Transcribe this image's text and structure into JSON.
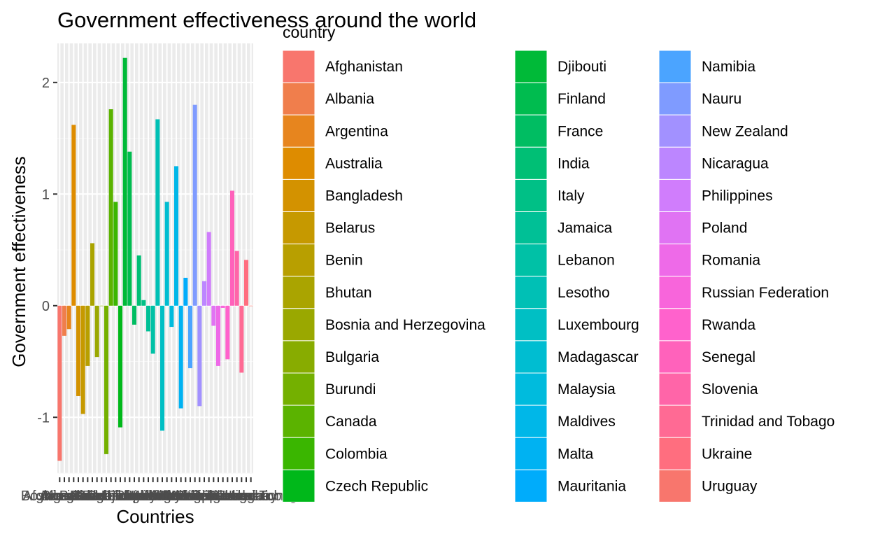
{
  "chart_data": {
    "type": "bar",
    "title": "Government effectiveness around the world",
    "xlabel": "Countries",
    "ylabel": "Government effectiveness",
    "ylim": [
      -1.5,
      2.35
    ],
    "yticks": [
      -1,
      0,
      1,
      2
    ],
    "grid": true,
    "legend_title": "country",
    "legend_position": "right",
    "categories": [
      "Afghanistan",
      "Albania",
      "Argentina",
      "Australia",
      "Bangladesh",
      "Belarus",
      "Benin",
      "Bhutan",
      "Bosnia and Herzegovina",
      "Bulgaria",
      "Burundi",
      "Canada",
      "Colombia",
      "Czech Republic",
      "Djibouti",
      "Finland",
      "France",
      "India",
      "Italy",
      "Jamaica",
      "Lebanon",
      "Lesotho",
      "Luxembourg",
      "Madagascar",
      "Malaysia",
      "Maldives",
      "Malta",
      "Mauritania",
      "Namibia",
      "Nauru",
      "New Zealand",
      "Nicaragua",
      "Philippines",
      "Poland",
      "Romania",
      "Russian Federation",
      "Rwanda",
      "Senegal",
      "Slovenia",
      "Trinidad and Tobago",
      "Ukraine",
      "Uruguay"
    ],
    "values": [
      -1.39,
      -0.27,
      -0.21,
      1.62,
      -0.81,
      -0.97,
      -0.54,
      0.56,
      -0.46,
      0.0,
      -1.33,
      1.76,
      0.93,
      -1.09,
      2.22,
      1.38,
      -0.17,
      0.45,
      0.05,
      -0.23,
      -0.43,
      1.67,
      -1.12,
      0.93,
      -0.19,
      1.25,
      -0.92,
      0.25,
      -0.56,
      1.8,
      -0.9,
      0.22,
      0.66,
      -0.18,
      -0.54,
      -0.02,
      -0.48,
      1.03,
      0.49,
      -0.6,
      0.41,
      0.0
    ],
    "colors": [
      "#F8766D",
      "#F07E4C",
      "#E7851E",
      "#DE8C00",
      "#D39200",
      "#C69900",
      "#B89F00",
      "#AAA400",
      "#9AA800",
      "#88AC00",
      "#74B000",
      "#5BB300",
      "#3AB600",
      "#00B81A",
      "#00BA38",
      "#00BC4F",
      "#00BD62",
      "#00BF75",
      "#00C086",
      "#00C096",
      "#00C1A6",
      "#00C0B5",
      "#00BFC4",
      "#00BDD1",
      "#00BBDD",
      "#00B7E8",
      "#00B2F2",
      "#00ACFB",
      "#4BA4FF",
      "#7F9BFF",
      "#A291FF",
      "#BC86FF",
      "#D07DFC",
      "#E073F3",
      "#EE6AE8",
      "#F865DB",
      "#FF62CC",
      "#FF62BB",
      "#FF65A8",
      "#FF6A94",
      "#FF6E7F",
      "#F8766D"
    ]
  }
}
